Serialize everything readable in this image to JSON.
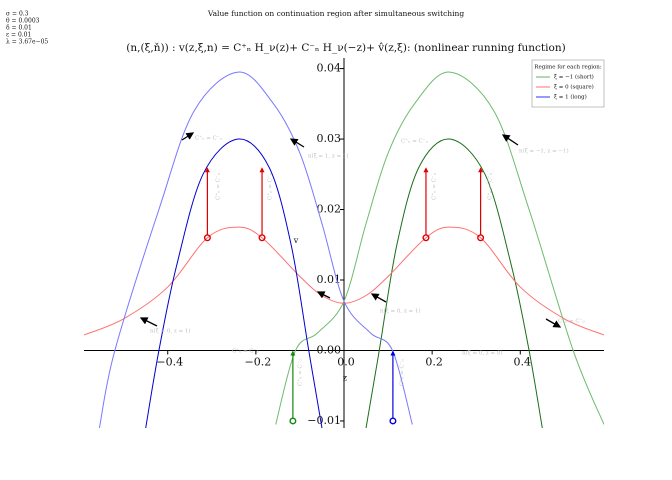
{
  "chart_data": {
    "type": "line",
    "title": "Value function on continuation region after simultaneous switching",
    "subtitle": "(n,(ξ,ň)) : v(z,ξ,n) = C⁺ₙ H_ν(z)+ C⁻ₙ H_ν(−z)+ v̂(z,ξ): (nonlinear running function)",
    "parameters": [
      "σ = 0.3",
      "θ = 0.0003",
      "δ = 0.01",
      "ε = 0.01",
      "λ = 3.67e−05"
    ],
    "xlabel": "z",
    "ylabel": "v",
    "xlim": [
      -0.59,
      0.59
    ],
    "ylim": [
      -0.011,
      0.0415
    ],
    "xticks": [
      {
        "value": -0.4,
        "label": "−0.4"
      },
      {
        "value": -0.2,
        "label": "−0.2"
      },
      {
        "value": 0,
        "label": "0.0"
      },
      0.2,
      0.4
    ],
    "yticks": [
      {
        "value": -0.01,
        "label": "−0.01"
      },
      {
        "value": 0,
        "label": "0.00"
      },
      0.01,
      0.02,
      0.03,
      0.04
    ],
    "legend_title": "Regime for each region:",
    "legend_position": "upper right",
    "series": [
      {
        "name": "ξ = −1 (short)",
        "color": "#5fb35f",
        "curves": [
          {
            "color": "#6dbb6d",
            "x": [
              -0.155,
              -0.11,
              -0.06,
              0,
              0.05,
              0.1,
              0.16,
              0.24,
              0.34,
              0.42,
              0.52,
              0.59
            ],
            "values": [
              -0.0105,
              0,
              0.0025,
              0.007,
              0.018,
              0.028,
              0.035,
              0.0395,
              0.034,
              0.02,
              0,
              -0.0105
            ]
          },
          {
            "color": "#1a6e1a",
            "x": [
              0.05,
              0.08,
              0.12,
              0.17,
              0.24,
              0.32,
              0.38,
              0.42,
              0.45
            ],
            "values": [
              -0.011,
              0,
              0.015,
              0.026,
              0.03,
              0.025,
              0.012,
              0,
              -0.011
            ]
          }
        ]
      },
      {
        "name": "ξ = 0 (square)",
        "color": "#ff7070",
        "curves": [
          {
            "color": "#ff7070",
            "x": [
              -0.59,
              -0.5,
              -0.4,
              -0.31,
              -0.24,
              -0.186,
              -0.1,
              -0.05,
              0,
              0.05,
              0.1,
              0.186,
              0.24,
              0.31,
              0.4,
              0.5,
              0.59
            ],
            "values": [
              0.0022,
              0.0045,
              0.009,
              0.016,
              0.0175,
              0.016,
              0.0105,
              0.0078,
              0.0067,
              0.0078,
              0.0105,
              0.016,
              0.0175,
              0.016,
              0.009,
              0.0045,
              0.0022
            ]
          }
        ]
      },
      {
        "name": "ξ = 1 (long)",
        "color": "#3030ff",
        "curves": [
          {
            "color": "#7878ff",
            "x": [
              -0.555,
              -0.52,
              -0.42,
              -0.34,
              -0.24,
              -0.16,
              -0.1,
              -0.05,
              0,
              0.06,
              0.11,
              0.155
            ],
            "values": [
              -0.011,
              0,
              0.02,
              0.034,
              0.0395,
              0.035,
              0.028,
              0.018,
              0.007,
              0.0025,
              0,
              -0.0105
            ]
          },
          {
            "color": "#0000d0",
            "x": [
              -0.45,
              -0.42,
              -0.38,
              -0.32,
              -0.24,
              -0.17,
              -0.12,
              -0.08,
              -0.05
            ],
            "values": [
              -0.011,
              0,
              0.012,
              0.025,
              0.03,
              0.026,
              0.015,
              0,
              -0.011
            ]
          }
        ]
      }
    ],
    "arrows": [
      {
        "color": "#e00000",
        "x": -0.31,
        "values": [
          0.016,
          0.026
        ]
      },
      {
        "color": "#e00000",
        "x": -0.186,
        "values": [
          0.016,
          0.026
        ]
      },
      {
        "color": "#e00000",
        "x": 0.186,
        "values": [
          0.016,
          0.026
        ]
      },
      {
        "color": "#e00000",
        "x": 0.31,
        "values": [
          0.016,
          0.026
        ]
      },
      {
        "color": "#118811",
        "x": -0.116,
        "values": [
          -0.01,
          0
        ]
      },
      {
        "color": "#0000dd",
        "x": 0.111,
        "values": [
          -0.01,
          0
        ]
      }
    ],
    "annotations": [
      "n(ξ = 1, z = 1)",
      "n(ξ = −1, z = −1)",
      "n(ξ = 0, z = 1)",
      "n(ξ = 0, z = 1)",
      "n(ξ = 0, z = 0)",
      "C⁺₀ = C⁻₀",
      "C⁺ₙ = C⁻ₙ",
      "C⁺ₙ = C⁻ₙ",
      "C⁺₀ = C⁻₀",
      "C⁺ₙ = C⁻ₙ",
      "C⁺ₙ = C⁻ₙ",
      "C⁺ₙ = C⁻ₙ",
      "C⁺ₙ = C⁻ₙ",
      "C⁺₀ = C⁻₀",
      "C⁺₀ = C⁻₀"
    ]
  }
}
